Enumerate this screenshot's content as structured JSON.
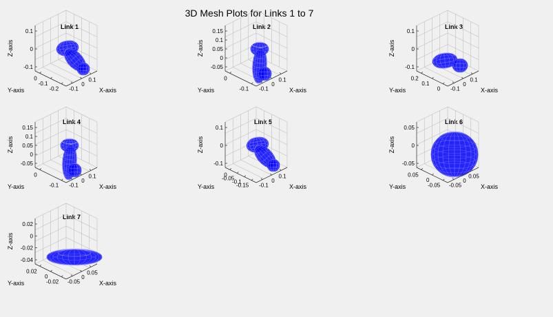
{
  "figure": {
    "title": "3D Mesh Plots for Links 1 to 7",
    "mesh_color": "#0000ff",
    "background": "#f0f0f0"
  },
  "chart_data": [
    {
      "type": "scatter",
      "title": "Link 1",
      "xlabel": "X-axis",
      "ylabel": "Y-axis",
      "zlabel": "Z-axis",
      "xticks": [
        "-0.1",
        "0",
        "0.1"
      ],
      "yticks": [
        "-0.2",
        "-0.1",
        "0"
      ],
      "zticks": [
        "-0.1",
        "0",
        "0.1"
      ],
      "xlim": [
        -0.15,
        0.15
      ],
      "ylim": [
        -0.22,
        0.02
      ],
      "zlim": [
        -0.15,
        0.15
      ],
      "shape": "capsule-bent"
    },
    {
      "type": "scatter",
      "title": "Link 2",
      "xlabel": "X-axis",
      "ylabel": "Y-axis",
      "zlabel": "Z-axis",
      "xticks": [
        "-0.1",
        "0",
        "0.1"
      ],
      "yticks": [
        "-0.1",
        "0"
      ],
      "zticks": [
        "-0.05",
        "0",
        "0.05",
        "0.1",
        "0.15"
      ],
      "xlim": [
        -0.15,
        0.15
      ],
      "ylim": [
        -0.15,
        0.05
      ],
      "zlim": [
        -0.08,
        0.18
      ],
      "shape": "vertical-link"
    },
    {
      "type": "scatter",
      "title": "Link 3",
      "xlabel": "X-axis",
      "ylabel": "Y-axis",
      "zlabel": "Z-axis",
      "xticks": [
        "-0.1",
        "0",
        "0.1"
      ],
      "yticks": [
        "0",
        "0.1",
        "0.2"
      ],
      "zticks": [
        "-0.1",
        "0",
        "0.1"
      ],
      "xlim": [
        -0.15,
        0.15
      ],
      "ylim": [
        -0.02,
        0.22
      ],
      "zlim": [
        -0.15,
        0.15
      ],
      "shape": "horizontal-link"
    },
    {
      "type": "scatter",
      "title": "Link 4",
      "xlabel": "X-axis",
      "ylabel": "Y-axis",
      "zlabel": "Z-axis",
      "xticks": [
        "-0.1",
        "0",
        "0.1"
      ],
      "yticks": [
        "-0.1",
        "0"
      ],
      "zticks": [
        "-0.05",
        "0",
        "0.05",
        "0.1",
        "0.15"
      ],
      "xlim": [
        -0.15,
        0.15
      ],
      "ylim": [
        -0.15,
        0.05
      ],
      "zlim": [
        -0.08,
        0.18
      ],
      "shape": "vertical-link"
    },
    {
      "type": "scatter",
      "title": "Link 5",
      "xlabel": "X-axis",
      "ylabel": "Y-axis",
      "zlabel": "Z-axis",
      "xticks": [
        "-0.1",
        "0",
        "0.1"
      ],
      "yticks": [
        "-0.15",
        "-0.1",
        "-0.05",
        "0"
      ],
      "zticks": [
        "-0.1",
        "0",
        "0.1"
      ],
      "xlim": [
        -0.15,
        0.15
      ],
      "ylim": [
        -0.17,
        0.02
      ],
      "zlim": [
        -0.15,
        0.15
      ],
      "shape": "capsule-bent"
    },
    {
      "type": "scatter",
      "title": "Link 6",
      "xlabel": "X-axis",
      "ylabel": "Y-axis",
      "zlabel": "Z-axis",
      "xticks": [
        "-0.05",
        "0",
        "0.05"
      ],
      "yticks": [
        "-0.05",
        "0",
        "0.05"
      ],
      "zticks": [
        "-0.05",
        "0",
        "0.05"
      ],
      "xlim": [
        -0.07,
        0.07
      ],
      "ylim": [
        -0.07,
        0.07
      ],
      "zlim": [
        -0.07,
        0.07
      ],
      "shape": "sphere"
    },
    {
      "type": "scatter",
      "title": "Link 7",
      "xlabel": "X-axis",
      "ylabel": "Y-axis",
      "zlabel": "Z-axis",
      "xticks": [
        "-0.05",
        "0",
        "0.05"
      ],
      "yticks": [
        "-0.02",
        "0",
        "0.02"
      ],
      "zticks": [
        "-0.04",
        "-0.02",
        "0",
        "0.02"
      ],
      "xlim": [
        -0.07,
        0.07
      ],
      "ylim": [
        -0.03,
        0.03
      ],
      "zlim": [
        -0.05,
        0.025
      ],
      "shape": "disc"
    }
  ]
}
